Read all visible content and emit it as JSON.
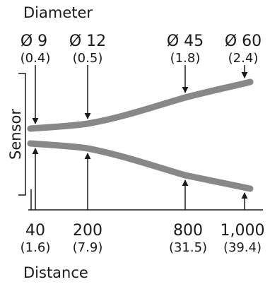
{
  "header": {
    "title": "Diameter"
  },
  "diameters": [
    {
      "value": "Ø 9",
      "sub": "(0.4)"
    },
    {
      "value": "Ø 12",
      "sub": "(0.5)"
    },
    {
      "value": "Ø 45",
      "sub": "(1.8)"
    },
    {
      "value": "Ø 60",
      "sub": "(2.4)"
    }
  ],
  "distances": [
    {
      "value": "40",
      "sub": "(1.6)"
    },
    {
      "value": "200",
      "sub": "(7.9)"
    },
    {
      "value": "800",
      "sub": "(31.5)"
    },
    {
      "value": "1,000",
      "sub": "(39.4)"
    }
  ],
  "side_label": "Sensor",
  "footer": {
    "title": "Distance"
  },
  "colors": {
    "beam": "#888888",
    "line": "#1a1a1a"
  }
}
